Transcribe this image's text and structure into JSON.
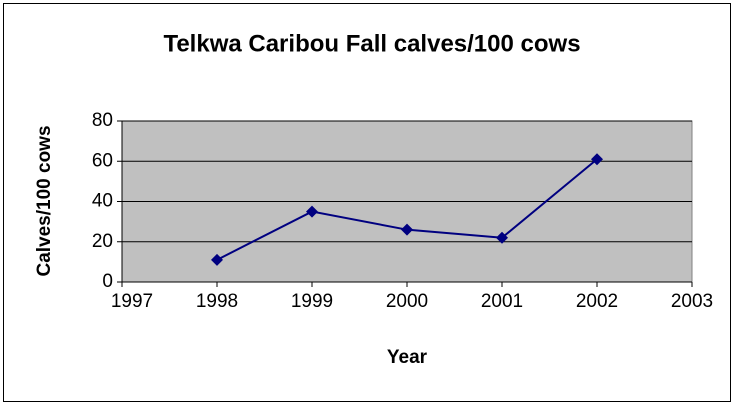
{
  "chart_data": {
    "type": "line",
    "title": "Telkwa Caribou Fall calves/100 cows",
    "x_label": "Year",
    "y_label": "Calves/100 cows",
    "x": [
      1998,
      1999,
      2000,
      2001,
      2002
    ],
    "series": [
      {
        "name": "Calves/100 cows",
        "color": "#000080",
        "values": [
          11,
          35,
          26,
          22,
          61
        ]
      }
    ],
    "xlim": [
      1997,
      2003
    ],
    "xticks": [
      1997,
      1998,
      1999,
      2000,
      2001,
      2002,
      2003
    ],
    "ylim": [
      0,
      80
    ],
    "yticks": [
      0,
      20,
      40,
      60,
      80
    ],
    "grid": true,
    "plot_background": "#c0c0c0"
  }
}
